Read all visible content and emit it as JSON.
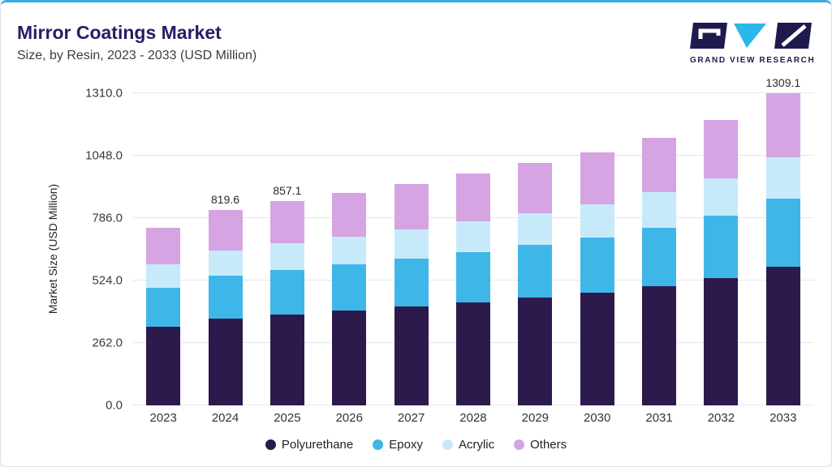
{
  "header": {
    "title": "Mirror Coatings Market",
    "subtitle": "Size, by Resin, 2023 - 2033 (USD Million)"
  },
  "logo": {
    "text": "GRAND VIEW RESEARCH"
  },
  "colors": {
    "accent_top_line": "#35AEE3",
    "title_text": "#2D1A66",
    "brand_navy": "#1F1A4E",
    "brand_cyan": "#2BB7E9",
    "gridline": "#E4E7EA"
  },
  "chart_data": {
    "type": "bar",
    "stacked": true,
    "title": "Mirror Coatings Market",
    "subtitle": "Size, by Resin, 2023 - 2033 (USD Million)",
    "xlabel": "",
    "ylabel": "Market Size (USD Million)",
    "ylim": [
      0,
      1310
    ],
    "grid": "horizontal",
    "legend_position": "bottom",
    "yticks": [
      0.0,
      262.0,
      524.0,
      786.0,
      1048.0,
      1310.0
    ],
    "ytick_labels": [
      "0.0",
      "262.0",
      "524.0",
      "786.0",
      "1048.0",
      "1310.0"
    ],
    "categories": [
      "2023",
      "2024",
      "2025",
      "2026",
      "2027",
      "2028",
      "2029",
      "2030",
      "2031",
      "2032",
      "2033"
    ],
    "series": [
      {
        "name": "Polyurethane",
        "color": "#2C1A4D",
        "values": [
          331.5,
          364.7,
          381.4,
          396.9,
          413.9,
          432.5,
          452.1,
          473.0,
          500.2,
          533.6,
          582.5
        ]
      },
      {
        "name": "Epoxy",
        "color": "#3EB7E8",
        "values": [
          162.4,
          178.7,
          186.8,
          194.5,
          202.7,
          211.9,
          221.5,
          231.7,
          245.0,
          261.4,
          285.4
        ]
      },
      {
        "name": "Acrylic",
        "color": "#C7EAFB",
        "values": [
          98.3,
          108.2,
          113.1,
          117.7,
          122.8,
          128.3,
          134.1,
          140.3,
          148.4,
          158.3,
          172.8
        ]
      },
      {
        "name": "Others",
        "color": "#D6A3E3",
        "values": [
          152.8,
          168.0,
          175.8,
          182.9,
          190.6,
          199.3,
          208.3,
          218.0,
          230.4,
          245.7,
          268.4
        ]
      }
    ],
    "totals": [
      745.0,
      819.6,
      857.1,
      892.0,
      930.0,
      972.0,
      1016.0,
      1063.0,
      1124.0,
      1199.0,
      1309.1
    ],
    "bar_value_labels": [
      "",
      "819.6",
      "857.1",
      "",
      "",
      "",
      "",
      "",
      "",
      "",
      "1309.1"
    ]
  }
}
